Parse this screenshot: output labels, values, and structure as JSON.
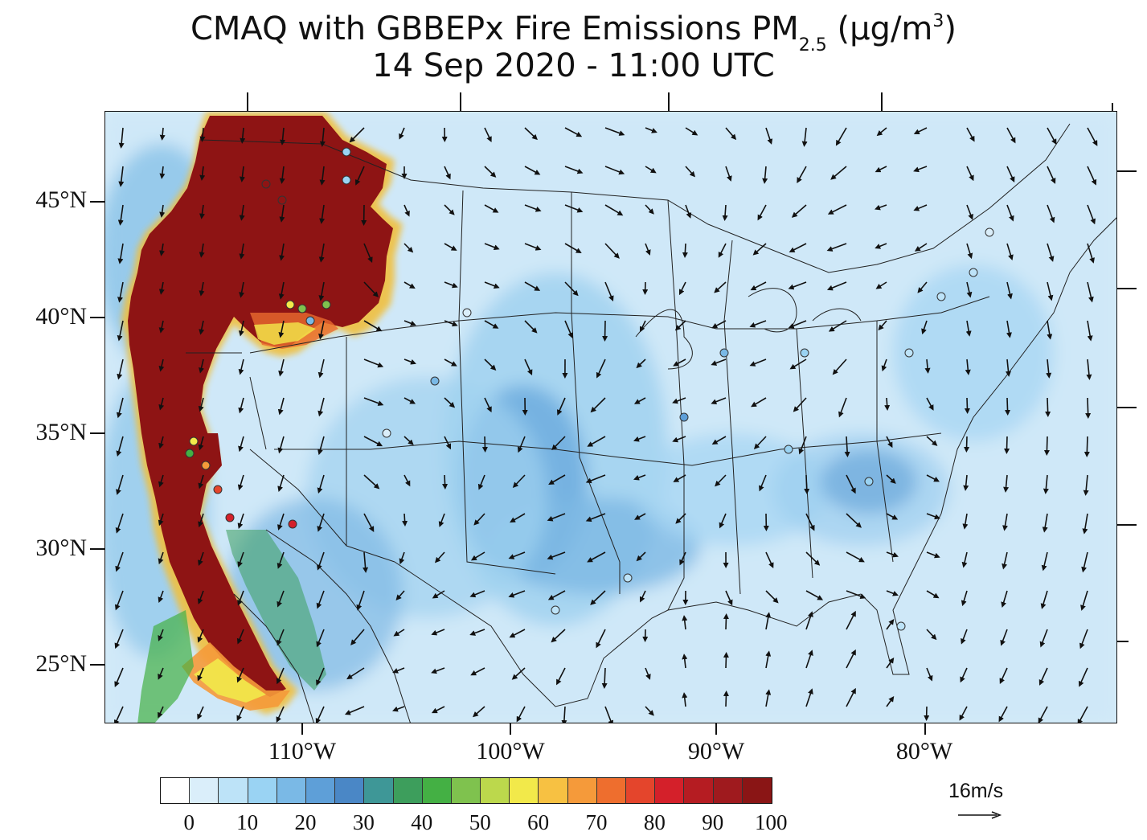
{
  "title": {
    "line1_prefix": "CMAQ with GBBEPx Fire Emissions PM",
    "line1_sub": "2.5",
    "line1_unit_prefix": " (µg/m",
    "line1_sup": "3",
    "line1_unit_suffix": ")",
    "line2": "14 Sep 2020 - 11:00 UTC"
  },
  "map": {
    "projection": "lambert-conformal",
    "region": "Contiguous United States",
    "lat_labels": [
      "45°N",
      "40°N",
      "35°N",
      "30°N",
      "25°N"
    ],
    "lon_labels": [
      "110°W",
      "100°W",
      "90°W",
      "80°W"
    ],
    "background_color": "#d6ecf9",
    "smoke_color": "#8e1414"
  },
  "colorbar": {
    "colors": [
      "#ffffff",
      "#daeefa",
      "#bde3f8",
      "#9ad3f3",
      "#7ab9e6",
      "#5e9fd8",
      "#4a87c6",
      "#3e9797",
      "#3d9e5c",
      "#44b044",
      "#7fc24e",
      "#bcd84c",
      "#f2e94a",
      "#f7c142",
      "#f59a3a",
      "#ee6e2e",
      "#e4452c",
      "#d4202a",
      "#b51c22",
      "#9f1a1e",
      "#8a1515"
    ],
    "labels": [
      "0",
      "10",
      "20",
      "30",
      "40",
      "50",
      "60",
      "70",
      "80",
      "90",
      "100"
    ]
  },
  "wind_legend": {
    "label": "16m/s"
  }
}
